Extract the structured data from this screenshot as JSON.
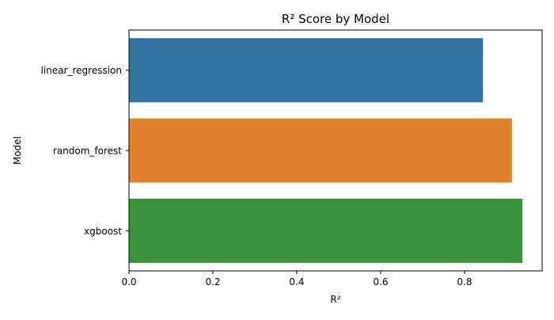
{
  "chart_data": {
    "type": "bar",
    "orientation": "horizontal",
    "title": "R² Score by Model",
    "xlabel": "R²",
    "ylabel": "Model",
    "categories": [
      "linear_regression",
      "random_forest",
      "xgboost"
    ],
    "values": [
      0.844,
      0.913,
      0.938
    ],
    "colors": [
      "#3274a1",
      "#e1812c",
      "#3a923a"
    ],
    "xlim": [
      0,
      0.985
    ],
    "xticks": [
      0.0,
      0.2,
      0.4,
      0.6,
      0.8
    ],
    "xtick_labels": [
      "0.0",
      "0.2",
      "0.4",
      "0.6",
      "0.8"
    ],
    "grid": false,
    "legend": false
  }
}
